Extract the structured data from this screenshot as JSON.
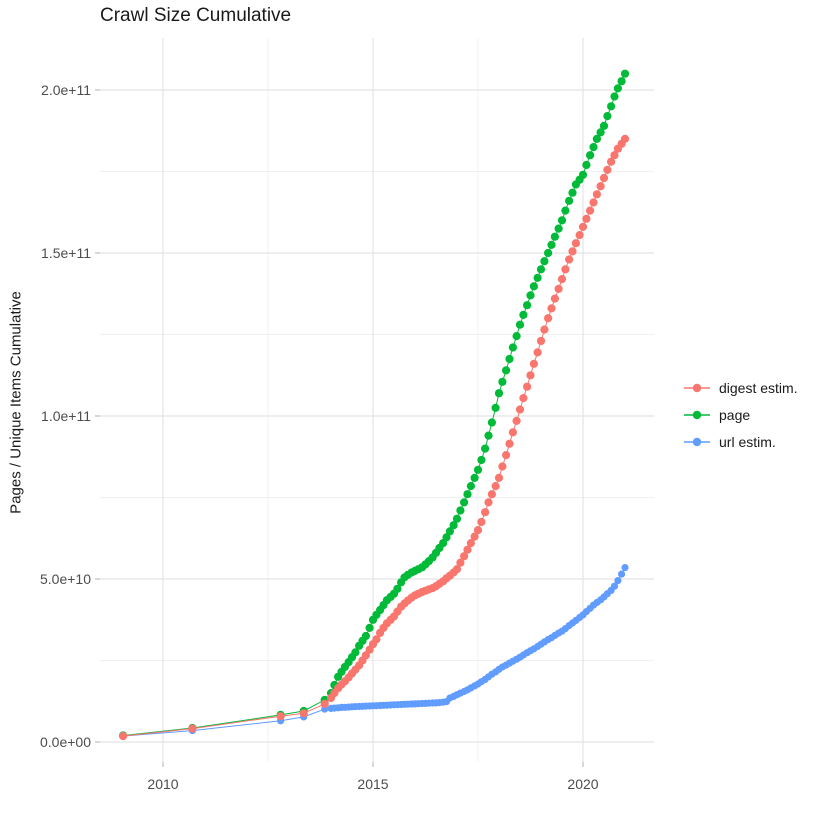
{
  "title": "Crawl Size Cumulative",
  "y_axis_label": "Pages / Unique Items Cumulative",
  "legend": {
    "items": [
      {
        "label": "digest estim.",
        "color": "#F8766D"
      },
      {
        "label": "page",
        "color": "#00BA38"
      },
      {
        "label": "url estim.",
        "color": "#619CFF"
      }
    ]
  },
  "colors": {
    "digest": "#F8766D",
    "page": "#00BA38",
    "url": "#619CFF",
    "grid_major": "#E4E4E4",
    "grid_minor": "#F0F0F0",
    "tick_mark": "#BEBEBE",
    "tick_text": "#4D4D4D"
  },
  "axes": {
    "x": {
      "ticks": [
        {
          "value": 2010,
          "label": "2010"
        },
        {
          "value": 2015,
          "label": "2015"
        },
        {
          "value": 2020,
          "label": "2020"
        }
      ],
      "minor": [
        2012.5,
        2017.5
      ],
      "range": [
        2008.55,
        2021.65
      ]
    },
    "y": {
      "unit": "1e9 pages",
      "ticks": [
        {
          "value": 0,
          "label": "0.0e+00"
        },
        {
          "value": 50,
          "label": "5.0e+10"
        },
        {
          "value": 100,
          "label": "1.0e+11"
        },
        {
          "value": 150,
          "label": "1.5e+11"
        },
        {
          "value": 200,
          "label": "2.0e+11"
        }
      ],
      "minor": [
        25,
        75,
        125,
        175
      ],
      "range": [
        -10,
        215
      ]
    }
  },
  "chart_data": {
    "type": "scatter",
    "title": "Crawl Size Cumulative",
    "xlabel": "",
    "ylabel": "Pages / Unique Items Cumulative",
    "x_unit": "year (decimal)",
    "y_unit": "cumulative count, values in billions (1e9)",
    "legend_position": "right",
    "grid": true,
    "series": [
      {
        "name": "digest estim.",
        "color": "#F8766D",
        "points": [
          [
            2009.05,
            1.8
          ],
          [
            2010.7,
            4.1
          ],
          [
            2012.8,
            7.9
          ],
          [
            2013.35,
            8.8
          ],
          [
            2013.85,
            11.7
          ],
          [
            2014.0,
            13.5
          ],
          [
            2014.08,
            15.0
          ],
          [
            2014.17,
            16.5
          ],
          [
            2014.25,
            17.6
          ],
          [
            2014.33,
            18.6
          ],
          [
            2014.42,
            19.8
          ],
          [
            2014.5,
            21.0
          ],
          [
            2014.58,
            22.2
          ],
          [
            2014.67,
            23.5
          ],
          [
            2014.75,
            25.0
          ],
          [
            2014.83,
            26.6
          ],
          [
            2014.92,
            28.3
          ],
          [
            2015.0,
            30.0
          ],
          [
            2015.08,
            31.5
          ],
          [
            2015.17,
            33.5
          ],
          [
            2015.25,
            35.0
          ],
          [
            2015.33,
            36.4
          ],
          [
            2015.42,
            37.5
          ],
          [
            2015.5,
            38.5
          ],
          [
            2015.58,
            40.0
          ],
          [
            2015.67,
            41.5
          ],
          [
            2015.75,
            42.5
          ],
          [
            2015.83,
            43.4
          ],
          [
            2015.92,
            44.3
          ],
          [
            2016.0,
            45.0
          ],
          [
            2016.08,
            45.5
          ],
          [
            2016.17,
            46.0
          ],
          [
            2016.25,
            46.4
          ],
          [
            2016.33,
            46.8
          ],
          [
            2016.42,
            47.2
          ],
          [
            2016.5,
            47.8
          ],
          [
            2016.58,
            48.5
          ],
          [
            2016.67,
            49.3
          ],
          [
            2016.75,
            50.2
          ],
          [
            2016.83,
            51.0
          ],
          [
            2016.92,
            52.0
          ],
          [
            2017.0,
            53.0
          ],
          [
            2017.08,
            55.0
          ],
          [
            2017.17,
            57.0
          ],
          [
            2017.25,
            59.0
          ],
          [
            2017.33,
            61.0
          ],
          [
            2017.42,
            63.0
          ],
          [
            2017.5,
            65.0
          ],
          [
            2017.58,
            67.5
          ],
          [
            2017.67,
            70.5
          ],
          [
            2017.75,
            73.5
          ],
          [
            2017.83,
            76.0
          ],
          [
            2017.92,
            78.5
          ],
          [
            2018.0,
            81.0
          ],
          [
            2018.08,
            84.5
          ],
          [
            2018.17,
            88.0
          ],
          [
            2018.25,
            91.5
          ],
          [
            2018.33,
            95.0
          ],
          [
            2018.42,
            98.5
          ],
          [
            2018.5,
            102.0
          ],
          [
            2018.58,
            105.5
          ],
          [
            2018.67,
            109.0
          ],
          [
            2018.75,
            112.5
          ],
          [
            2018.83,
            116.0
          ],
          [
            2018.92,
            119.5
          ],
          [
            2019.0,
            123.0
          ],
          [
            2019.08,
            126.5
          ],
          [
            2019.17,
            130.0
          ],
          [
            2019.25,
            133.0
          ],
          [
            2019.33,
            136.0
          ],
          [
            2019.42,
            139.0
          ],
          [
            2019.5,
            142.0
          ],
          [
            2019.58,
            145.0
          ],
          [
            2019.67,
            148.0
          ],
          [
            2019.75,
            150.5
          ],
          [
            2019.83,
            153.0
          ],
          [
            2019.92,
            155.5
          ],
          [
            2020.0,
            158.0
          ],
          [
            2020.08,
            160.5
          ],
          [
            2020.17,
            163.0
          ],
          [
            2020.25,
            165.5
          ],
          [
            2020.33,
            168.0
          ],
          [
            2020.42,
            170.5
          ],
          [
            2020.5,
            173.0
          ],
          [
            2020.58,
            175.5
          ],
          [
            2020.67,
            178.0
          ],
          [
            2020.75,
            180.0
          ],
          [
            2020.83,
            182.0
          ],
          [
            2020.92,
            183.5
          ],
          [
            2021.0,
            185.0
          ]
        ]
      },
      {
        "name": "page",
        "color": "#00BA38",
        "points": [
          [
            2009.05,
            2.0
          ],
          [
            2010.7,
            4.3
          ],
          [
            2012.8,
            8.3
          ],
          [
            2013.35,
            9.5
          ],
          [
            2013.85,
            12.9
          ],
          [
            2014.0,
            15.0
          ],
          [
            2014.08,
            17.5
          ],
          [
            2014.17,
            20.0
          ],
          [
            2014.25,
            21.5
          ],
          [
            2014.33,
            23.0
          ],
          [
            2014.42,
            24.5
          ],
          [
            2014.5,
            26.0
          ],
          [
            2014.58,
            27.5
          ],
          [
            2014.67,
            29.5
          ],
          [
            2014.75,
            31.0
          ],
          [
            2014.83,
            32.5
          ],
          [
            2014.92,
            35.0
          ],
          [
            2015.0,
            37.5
          ],
          [
            2015.08,
            39.0
          ],
          [
            2015.17,
            40.5
          ],
          [
            2015.25,
            42.0
          ],
          [
            2015.33,
            43.5
          ],
          [
            2015.42,
            44.5
          ],
          [
            2015.5,
            45.5
          ],
          [
            2015.58,
            47.0
          ],
          [
            2015.67,
            49.0
          ],
          [
            2015.75,
            50.5
          ],
          [
            2015.83,
            51.3
          ],
          [
            2015.92,
            52.0
          ],
          [
            2016.0,
            52.5
          ],
          [
            2016.08,
            53.0
          ],
          [
            2016.17,
            53.6
          ],
          [
            2016.25,
            54.5
          ],
          [
            2016.33,
            55.5
          ],
          [
            2016.42,
            56.6
          ],
          [
            2016.5,
            58.0
          ],
          [
            2016.58,
            59.5
          ],
          [
            2016.67,
            61.0
          ],
          [
            2016.75,
            62.8
          ],
          [
            2016.83,
            64.6
          ],
          [
            2016.92,
            66.5
          ],
          [
            2017.0,
            68.5
          ],
          [
            2017.08,
            71.0
          ],
          [
            2017.17,
            73.5
          ],
          [
            2017.25,
            76.0
          ],
          [
            2017.33,
            78.5
          ],
          [
            2017.42,
            81.0
          ],
          [
            2017.5,
            83.5
          ],
          [
            2017.58,
            86.5
          ],
          [
            2017.67,
            90.0
          ],
          [
            2017.75,
            94.0
          ],
          [
            2017.83,
            98.0
          ],
          [
            2017.92,
            102.5
          ],
          [
            2018.0,
            107.0
          ],
          [
            2018.08,
            110.5
          ],
          [
            2018.17,
            114.0
          ],
          [
            2018.25,
            117.5
          ],
          [
            2018.33,
            121.0
          ],
          [
            2018.42,
            124.5
          ],
          [
            2018.5,
            128.0
          ],
          [
            2018.58,
            131.0
          ],
          [
            2018.67,
            134.0
          ],
          [
            2018.75,
            137.0
          ],
          [
            2018.83,
            139.8
          ],
          [
            2018.92,
            142.4
          ],
          [
            2019.0,
            145.0
          ],
          [
            2019.08,
            147.5
          ],
          [
            2019.17,
            150.0
          ],
          [
            2019.25,
            152.5
          ],
          [
            2019.33,
            155.0
          ],
          [
            2019.42,
            157.5
          ],
          [
            2019.5,
            160.0
          ],
          [
            2019.58,
            163.0
          ],
          [
            2019.67,
            166.0
          ],
          [
            2019.75,
            168.5
          ],
          [
            2019.83,
            171.0
          ],
          [
            2019.92,
            172.5
          ],
          [
            2020.0,
            174.0
          ],
          [
            2020.08,
            177.0
          ],
          [
            2020.17,
            180.0
          ],
          [
            2020.25,
            182.5
          ],
          [
            2020.33,
            185.0
          ],
          [
            2020.42,
            187.0
          ],
          [
            2020.5,
            189.0
          ],
          [
            2020.58,
            192.0
          ],
          [
            2020.67,
            195.0
          ],
          [
            2020.75,
            198.0
          ],
          [
            2020.83,
            200.5
          ],
          [
            2020.92,
            202.7
          ],
          [
            2021.0,
            205.0
          ]
        ]
      },
      {
        "name": "url estim.",
        "color": "#619CFF",
        "points": [
          [
            2009.05,
            1.8
          ],
          [
            2010.7,
            3.5
          ],
          [
            2012.8,
            6.5
          ],
          [
            2013.35,
            7.7
          ],
          [
            2013.85,
            10.1
          ],
          [
            2014.0,
            10.3
          ],
          [
            2014.08,
            10.4
          ],
          [
            2014.17,
            10.5
          ],
          [
            2014.25,
            10.6
          ],
          [
            2014.33,
            10.65
          ],
          [
            2014.42,
            10.7
          ],
          [
            2014.5,
            10.8
          ],
          [
            2014.58,
            10.85
          ],
          [
            2014.67,
            10.9
          ],
          [
            2014.75,
            10.95
          ],
          [
            2014.83,
            11.0
          ],
          [
            2014.92,
            11.05
          ],
          [
            2015.0,
            11.1
          ],
          [
            2015.08,
            11.15
          ],
          [
            2015.17,
            11.2
          ],
          [
            2015.25,
            11.25
          ],
          [
            2015.33,
            11.3
          ],
          [
            2015.42,
            11.35
          ],
          [
            2015.5,
            11.4
          ],
          [
            2015.58,
            11.45
          ],
          [
            2015.67,
            11.5
          ],
          [
            2015.75,
            11.55
          ],
          [
            2015.83,
            11.6
          ],
          [
            2015.92,
            11.65
          ],
          [
            2016.0,
            11.7
          ],
          [
            2016.08,
            11.75
          ],
          [
            2016.17,
            11.8
          ],
          [
            2016.25,
            11.85
          ],
          [
            2016.33,
            11.9
          ],
          [
            2016.42,
            11.95
          ],
          [
            2016.5,
            12.0
          ],
          [
            2016.58,
            12.1
          ],
          [
            2016.67,
            12.2
          ],
          [
            2016.75,
            12.4
          ],
          [
            2016.83,
            13.5
          ],
          [
            2016.92,
            14.0
          ],
          [
            2017.0,
            14.5
          ],
          [
            2017.08,
            15.0
          ],
          [
            2017.17,
            15.5
          ],
          [
            2017.25,
            16.0
          ],
          [
            2017.33,
            16.6
          ],
          [
            2017.42,
            17.2
          ],
          [
            2017.5,
            17.8
          ],
          [
            2017.58,
            18.5
          ],
          [
            2017.67,
            19.2
          ],
          [
            2017.75,
            20.0
          ],
          [
            2017.83,
            20.8
          ],
          [
            2017.92,
            21.5
          ],
          [
            2018.0,
            22.3
          ],
          [
            2018.08,
            23.0
          ],
          [
            2018.17,
            23.6
          ],
          [
            2018.25,
            24.2
          ],
          [
            2018.33,
            24.8
          ],
          [
            2018.42,
            25.4
          ],
          [
            2018.5,
            26.0
          ],
          [
            2018.58,
            26.7
          ],
          [
            2018.67,
            27.4
          ],
          [
            2018.75,
            28.0
          ],
          [
            2018.83,
            28.6
          ],
          [
            2018.92,
            29.3
          ],
          [
            2019.0,
            30.0
          ],
          [
            2019.08,
            30.7
          ],
          [
            2019.17,
            31.4
          ],
          [
            2019.25,
            32.0
          ],
          [
            2019.33,
            32.7
          ],
          [
            2019.42,
            33.4
          ],
          [
            2019.5,
            34.0
          ],
          [
            2019.58,
            34.8
          ],
          [
            2019.67,
            35.7
          ],
          [
            2019.75,
            36.5
          ],
          [
            2019.83,
            37.3
          ],
          [
            2019.92,
            38.2
          ],
          [
            2020.0,
            39.0
          ],
          [
            2020.08,
            40.0
          ],
          [
            2020.17,
            41.0
          ],
          [
            2020.25,
            42.0
          ],
          [
            2020.33,
            42.8
          ],
          [
            2020.42,
            43.6
          ],
          [
            2020.5,
            44.5
          ],
          [
            2020.58,
            45.5
          ],
          [
            2020.67,
            46.5
          ],
          [
            2020.75,
            47.8
          ],
          [
            2020.83,
            49.5
          ],
          [
            2020.92,
            51.5
          ],
          [
            2021.0,
            53.5
          ]
        ]
      }
    ]
  }
}
